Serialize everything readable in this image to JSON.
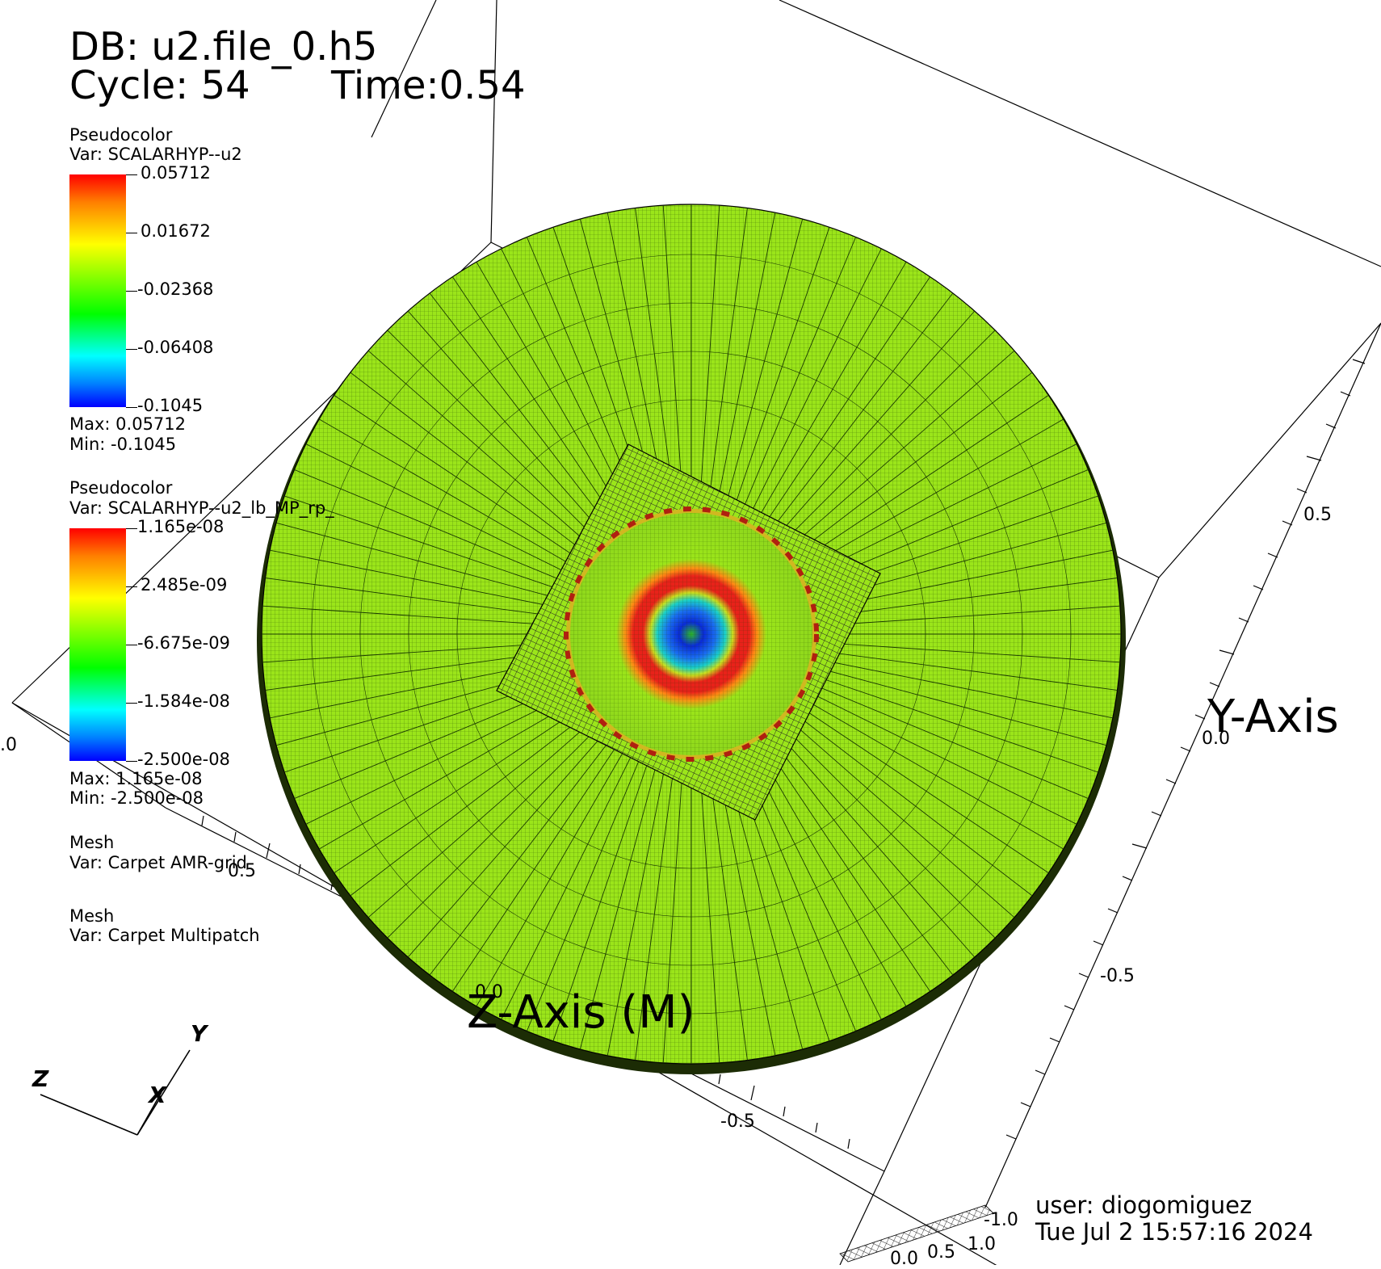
{
  "header": {
    "db": "DB: u2.file_0.h5",
    "cycle": "Cycle: 54",
    "time": "Time:0.54"
  },
  "legends": [
    {
      "plot_type": "Pseudocolor",
      "var": "Var: SCALARHYP--u2",
      "ticks": [
        "0.05712",
        "0.01672",
        "-0.02368",
        "-0.06408",
        "-0.1045"
      ],
      "max": "Max:  0.05712",
      "min": "Min: -0.1045"
    },
    {
      "plot_type": "Pseudocolor",
      "var": "Var: SCALARHYP--u2_lb_MP_rp_",
      "ticks": [
        "1.165e-08",
        "2.485e-09",
        "-6.675e-09",
        "-1.584e-08",
        "-2.500e-08"
      ],
      "max": "Max:  1.165e-08",
      "min": "Min: -2.500e-08"
    },
    {
      "plot_type": "Mesh",
      "var": "Var: Carpet AMR-grid"
    },
    {
      "plot_type": "Mesh",
      "var": "Var: Carpet Multipatch"
    }
  ],
  "axes": {
    "y_title": "Y-Axis",
    "z_title": "Z-Axis (M)",
    "y_ticks": [
      "0.5",
      "0.0",
      "-0.5",
      "-1.0"
    ],
    "z_ticks": [
      "0.5",
      "0.0",
      "-0.5"
    ],
    "left_tick": ".0",
    "bottom_ticks": [
      "0.0",
      "0.5",
      "1.0"
    ],
    "bottom_right": "1.0"
  },
  "triad": {
    "x": "X",
    "y": "Y",
    "z": "Z"
  },
  "footer": {
    "user": "user: diogomiguez",
    "date": "Tue Jul  2 15:57:16 2024"
  },
  "colors": {
    "background": "#ffffff",
    "surface": "#9be51a",
    "ring_red": "#e8221a",
    "ring_blue": "#0a2bd8"
  }
}
